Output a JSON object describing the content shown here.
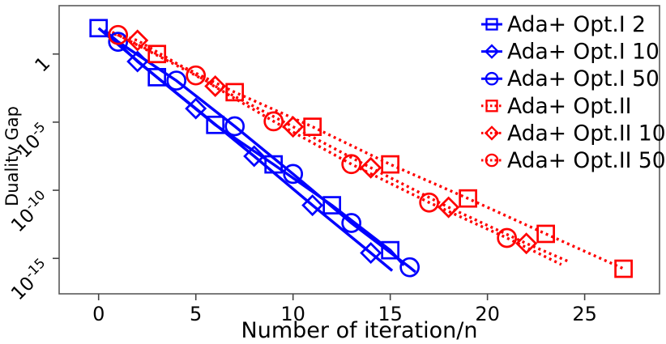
{
  "figure": {
    "background": "#ffffff",
    "frame_color": "#5a5a5a",
    "tick_color": "#444444",
    "text_color": "#000000",
    "accent_blue": "#0000ff",
    "accent_red": "#ff0000"
  },
  "chart_data": {
    "type": "line",
    "title": "",
    "xlabel": "Number of iteration/n",
    "ylabel": "Duality Gap",
    "y_scale": "log10",
    "grid": false,
    "legend_position": "top-right",
    "x_range": [
      -2.03,
      28.85
    ],
    "y_log10_range": [
      3.55,
      -17.6
    ],
    "x_ticks": [
      0,
      5,
      10,
      15,
      20,
      25
    ],
    "x_tick_labels": [
      "0",
      "5",
      "10",
      "15",
      "20",
      "25"
    ],
    "y_ticks": [
      {
        "label": "1",
        "log10": 0
      },
      {
        "base": "10",
        "exponent": "-5",
        "log10": -5
      },
      {
        "base": "10",
        "exponent": "-10",
        "log10": -10
      },
      {
        "base": "10",
        "exponent": "-15",
        "log10": -15
      }
    ],
    "series": [
      {
        "name": "Ada+ Opt.I 2",
        "color": "#0000ff",
        "line_style": "solid",
        "marker": "square",
        "line_start": null,
        "points_x_log10y": [
          [
            0,
            1.9
          ],
          [
            3,
            -1.7
          ],
          [
            6,
            -5.2
          ],
          [
            9,
            -8.1
          ],
          [
            12,
            -11.1
          ],
          [
            15,
            -14.4
          ]
        ],
        "line_end": [
          15.7,
          -15.5
        ]
      },
      {
        "name": "Ada+ Opt.I 10",
        "color": "#0000ff",
        "line_style": "solid",
        "marker": "diamond",
        "line_start": [
          0.4,
          1.6
        ],
        "points_x_log10y": [
          [
            2,
            -0.55
          ],
          [
            5,
            -4.0
          ],
          [
            8,
            -7.5
          ],
          [
            11,
            -11.1
          ],
          [
            14,
            -14.6
          ]
        ],
        "line_end": [
          15.1,
          -15.9
        ]
      },
      {
        "name": "Ada+ Opt.I 50",
        "color": "#0000ff",
        "line_style": "solid",
        "marker": "circle",
        "line_start": [
          0.3,
          1.75
        ],
        "points_x_log10y": [
          [
            1,
            0.9
          ],
          [
            4,
            -1.95
          ],
          [
            7,
            -5.3
          ],
          [
            10,
            -8.8
          ],
          [
            13,
            -12.4
          ],
          [
            16,
            -15.65
          ]
        ],
        "line_end": [
          16.3,
          -16.0
        ]
      },
      {
        "name": "Ada+ Opt.II",
        "color": "#ff0000",
        "line_style": "dotted",
        "marker": "square",
        "line_start": [
          0.7,
          1.6
        ],
        "points_x_log10y": [
          [
            3,
            0.0
          ],
          [
            7,
            -2.8
          ],
          [
            11,
            -5.34
          ],
          [
            15,
            -8.1
          ],
          [
            19,
            -10.6
          ],
          [
            23,
            -13.2
          ],
          [
            27,
            -15.76
          ]
        ],
        "line_end": null
      },
      {
        "name": "Ada+ Opt.II 10",
        "color": "#ff0000",
        "line_style": "dotted",
        "marker": "diamond",
        "line_start": [
          0.7,
          1.55
        ],
        "points_x_log10y": [
          [
            2,
            1.0
          ],
          [
            6,
            -2.36
          ],
          [
            10,
            -5.34
          ],
          [
            14,
            -8.35
          ],
          [
            18,
            -11.25
          ],
          [
            22,
            -13.9
          ]
        ],
        "line_end": [
          24.2,
          -15.25
        ]
      },
      {
        "name": "Ada+ Opt.II 50",
        "color": "#ff0000",
        "line_style": "dotted",
        "marker": "circle",
        "line_start": [
          0.8,
          1.45
        ],
        "points_x_log10y": [
          [
            1,
            1.4
          ],
          [
            5,
            -1.57
          ],
          [
            9,
            -4.94
          ],
          [
            13,
            -8.08
          ],
          [
            17,
            -10.9
          ],
          [
            21,
            -13.5
          ]
        ],
        "line_end": [
          23.8,
          -15.45
        ]
      }
    ]
  }
}
